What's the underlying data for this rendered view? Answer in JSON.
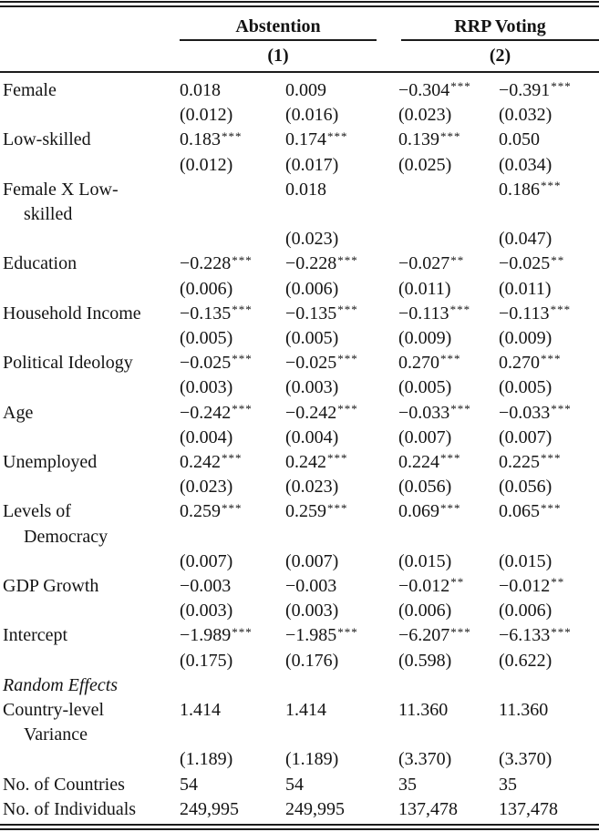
{
  "colors": {
    "background": "#ffffff",
    "text": "#141414",
    "rule": "#1b1b1b"
  },
  "table": {
    "groups": [
      {
        "label": "Abstention",
        "model_label": "(1)"
      },
      {
        "label": "RRP Voting",
        "model_label": "(2)"
      }
    ],
    "rows": [
      {
        "label": "Female",
        "cells": [
          [
            "0.018",
            ""
          ],
          [
            "0.009",
            ""
          ],
          [
            "−0.304",
            "***"
          ],
          [
            "−0.391",
            "***"
          ]
        ]
      },
      {
        "label": "",
        "cells": [
          [
            "(0.012)",
            ""
          ],
          [
            "(0.016)",
            ""
          ],
          [
            "(0.023)",
            ""
          ],
          [
            "(0.032)",
            ""
          ]
        ]
      },
      {
        "label": "Low-skilled",
        "cells": [
          [
            "0.183",
            "***"
          ],
          [
            "0.174",
            "***"
          ],
          [
            "0.139",
            "***"
          ],
          [
            "0.050",
            ""
          ]
        ]
      },
      {
        "label": "",
        "cells": [
          [
            "(0.012)",
            ""
          ],
          [
            "(0.017)",
            ""
          ],
          [
            "(0.025)",
            ""
          ],
          [
            "(0.034)",
            ""
          ]
        ]
      },
      {
        "label": "Female X Low-",
        "cells": [
          [
            "",
            ""
          ],
          [
            "0.018",
            ""
          ],
          [
            "",
            ""
          ],
          [
            "0.186",
            "***"
          ]
        ]
      },
      {
        "label": "skilled",
        "indent": true,
        "cells": [
          [
            "",
            ""
          ],
          [
            "",
            ""
          ],
          [
            "",
            ""
          ],
          [
            "",
            ""
          ]
        ]
      },
      {
        "label": "",
        "cells": [
          [
            "",
            ""
          ],
          [
            "(0.023)",
            ""
          ],
          [
            "",
            ""
          ],
          [
            "(0.047)",
            ""
          ]
        ]
      },
      {
        "label": "Education",
        "cells": [
          [
            "−0.228",
            "***"
          ],
          [
            "−0.228",
            "***"
          ],
          [
            "−0.027",
            "**"
          ],
          [
            "−0.025",
            "**"
          ]
        ]
      },
      {
        "label": "",
        "cells": [
          [
            "(0.006)",
            ""
          ],
          [
            "(0.006)",
            ""
          ],
          [
            "(0.011)",
            ""
          ],
          [
            "(0.011)",
            ""
          ]
        ]
      },
      {
        "label": "Household Income",
        "cells": [
          [
            "−0.135",
            "***"
          ],
          [
            "−0.135",
            "***"
          ],
          [
            "−0.113",
            "***"
          ],
          [
            "−0.113",
            "***"
          ]
        ]
      },
      {
        "label": "",
        "cells": [
          [
            "(0.005)",
            ""
          ],
          [
            "(0.005)",
            ""
          ],
          [
            "(0.009)",
            ""
          ],
          [
            "(0.009)",
            ""
          ]
        ]
      },
      {
        "label": "Political Ideology",
        "cells": [
          [
            "−0.025",
            "***"
          ],
          [
            "−0.025",
            "***"
          ],
          [
            "0.270",
            "***"
          ],
          [
            "0.270",
            "***"
          ]
        ]
      },
      {
        "label": "",
        "cells": [
          [
            "(0.003)",
            ""
          ],
          [
            "(0.003)",
            ""
          ],
          [
            "(0.005)",
            ""
          ],
          [
            "(0.005)",
            ""
          ]
        ]
      },
      {
        "label": "Age",
        "cells": [
          [
            "−0.242",
            "***"
          ],
          [
            "−0.242",
            "***"
          ],
          [
            "−0.033",
            "***"
          ],
          [
            "−0.033",
            "***"
          ]
        ]
      },
      {
        "label": "",
        "cells": [
          [
            "(0.004)",
            ""
          ],
          [
            "(0.004)",
            ""
          ],
          [
            "(0.007)",
            ""
          ],
          [
            "(0.007)",
            ""
          ]
        ]
      },
      {
        "label": "Unemployed",
        "cells": [
          [
            "0.242",
            "***"
          ],
          [
            "0.242",
            "***"
          ],
          [
            "0.224",
            "***"
          ],
          [
            "0.225",
            "***"
          ]
        ]
      },
      {
        "label": "",
        "cells": [
          [
            "(0.023)",
            ""
          ],
          [
            "(0.023)",
            ""
          ],
          [
            "(0.056)",
            ""
          ],
          [
            "(0.056)",
            ""
          ]
        ]
      },
      {
        "label": "Levels of",
        "cells": [
          [
            "0.259",
            "***"
          ],
          [
            "0.259",
            "***"
          ],
          [
            "0.069",
            "***"
          ],
          [
            "0.065",
            "***"
          ]
        ]
      },
      {
        "label": "Democracy",
        "indent": true,
        "cells": [
          [
            "",
            ""
          ],
          [
            "",
            ""
          ],
          [
            "",
            ""
          ],
          [
            "",
            ""
          ]
        ]
      },
      {
        "label": "",
        "cells": [
          [
            "(0.007)",
            ""
          ],
          [
            "(0.007)",
            ""
          ],
          [
            "(0.015)",
            ""
          ],
          [
            "(0.015)",
            ""
          ]
        ]
      },
      {
        "label": "GDP Growth",
        "cells": [
          [
            "−0.003",
            ""
          ],
          [
            "−0.003",
            ""
          ],
          [
            "−0.012",
            "**"
          ],
          [
            "−0.012",
            "**"
          ]
        ]
      },
      {
        "label": "",
        "cells": [
          [
            "(0.003)",
            ""
          ],
          [
            "(0.003)",
            ""
          ],
          [
            "(0.006)",
            ""
          ],
          [
            "(0.006)",
            ""
          ]
        ]
      },
      {
        "label": "Intercept",
        "cells": [
          [
            "−1.989",
            "***"
          ],
          [
            "−1.985",
            "***"
          ],
          [
            "−6.207",
            "***"
          ],
          [
            "−6.133",
            "***"
          ]
        ]
      },
      {
        "label": "",
        "cells": [
          [
            "(0.175)",
            ""
          ],
          [
            "(0.176)",
            ""
          ],
          [
            "(0.598)",
            ""
          ],
          [
            "(0.622)",
            ""
          ]
        ]
      },
      {
        "label": "Random Effects",
        "italic": true,
        "cells": [
          [
            "",
            ""
          ],
          [
            "",
            ""
          ],
          [
            "",
            ""
          ],
          [
            "",
            ""
          ]
        ]
      },
      {
        "label": "Country-level",
        "cells": [
          [
            "1.414",
            ""
          ],
          [
            "1.414",
            ""
          ],
          [
            "11.360",
            ""
          ],
          [
            "11.360",
            ""
          ]
        ]
      },
      {
        "label": "Variance",
        "indent": true,
        "cells": [
          [
            "",
            ""
          ],
          [
            "",
            ""
          ],
          [
            "",
            ""
          ],
          [
            "",
            ""
          ]
        ]
      },
      {
        "label": "",
        "cells": [
          [
            "(1.189)",
            ""
          ],
          [
            "(1.189)",
            ""
          ],
          [
            "(3.370)",
            ""
          ],
          [
            "(3.370)",
            ""
          ]
        ]
      },
      {
        "label": "No. of Countries",
        "cells": [
          [
            "54",
            ""
          ],
          [
            "54",
            ""
          ],
          [
            "35",
            ""
          ],
          [
            "35",
            ""
          ]
        ]
      },
      {
        "label": "No. of Individuals",
        "cells": [
          [
            "249,995",
            ""
          ],
          [
            "249,995",
            ""
          ],
          [
            "137,478",
            ""
          ],
          [
            "137,478",
            ""
          ]
        ]
      }
    ]
  }
}
